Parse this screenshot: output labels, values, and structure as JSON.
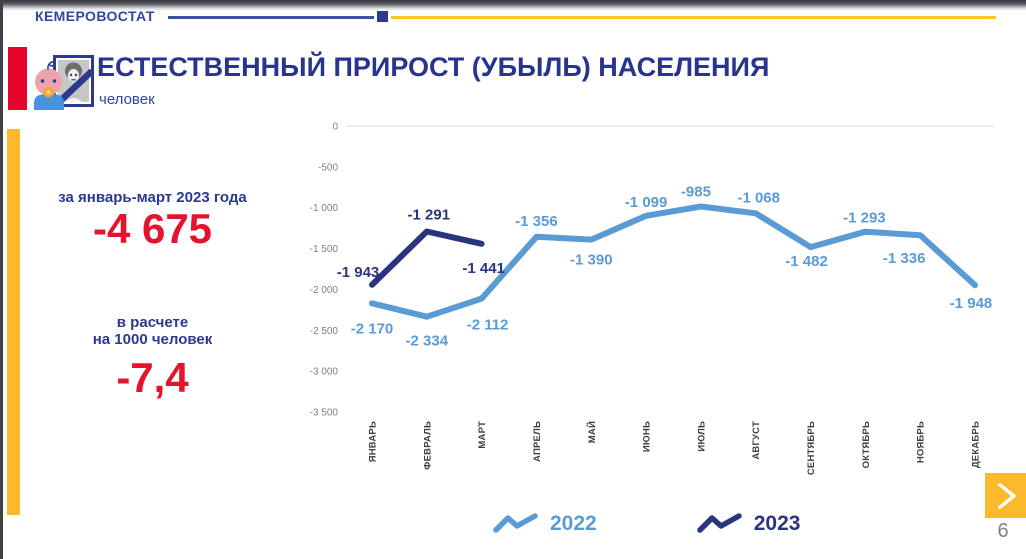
{
  "header": {
    "brand": "КЕМЕРОВОСТАТ"
  },
  "title": {
    "text": "ЕСТЕСТВЕННЫЙ ПРИРОСТ (УБЫЛЬ) НАСЕЛЕНИЯ",
    "subtitle": "человек"
  },
  "stats": {
    "period_label": "за январь-март 2023 года",
    "period_value": "-4 675",
    "rate_label_line1": "в расчете",
    "rate_label_line2": "на 1000 человек",
    "rate_value": "-7,4"
  },
  "chart_data": {
    "type": "line",
    "title": "ЕСТЕСТВЕННЫЙ ПРИРОСТ (УБЫЛЬ) НАСЕЛЕНИЯ",
    "unit": "человек",
    "categories": [
      "ЯНВАРЬ",
      "ФЕВРАЛЬ",
      "МАРТ",
      "АПРЕЛЬ",
      "МАЙ",
      "ИЮНЬ",
      "ИЮЛЬ",
      "АВГУСТ",
      "СЕНТЯБРЬ",
      "ОКТЯБРЬ",
      "НОЯБРЬ",
      "ДЕКАБРЬ"
    ],
    "series": [
      {
        "name": "2022",
        "color": "#5b9bd5",
        "values": [
          -2170,
          -2334,
          -2112,
          -1356,
          -1390,
          -1099,
          -985,
          -1068,
          -1482,
          -1293,
          -1336,
          -1948
        ],
        "label_offsets": [
          [
            0,
            30
          ],
          [
            0,
            29
          ],
          [
            6,
            31
          ],
          [
            0,
            -11
          ],
          [
            0,
            25
          ],
          [
            0,
            -9
          ],
          [
            -5,
            -10
          ],
          [
            3,
            -11
          ],
          [
            -4,
            19
          ],
          [
            -1,
            -9
          ],
          [
            -16,
            28
          ],
          [
            -4,
            23
          ]
        ]
      },
      {
        "name": "2023",
        "color": "#29367f",
        "values": [
          -1943,
          -1291,
          -1441
        ],
        "label_offsets": [
          [
            -14,
            -8
          ],
          [
            2,
            -12
          ],
          [
            2,
            29
          ]
        ]
      }
    ],
    "y_axis": {
      "min": -3500,
      "max": 0,
      "step": 500,
      "tick_labels": [
        "0",
        "-500",
        "-1 000",
        "-1 500",
        "-2 000",
        "-2 500",
        "-3 000",
        "-3 500"
      ]
    },
    "grid": "zero-line-only",
    "legend_position": "bottom"
  },
  "legend": {
    "items": [
      {
        "label": "2022",
        "color": "#5b9bd5"
      },
      {
        "label": "2023",
        "color": "#29367f"
      }
    ]
  },
  "pagination": {
    "page": "6"
  },
  "colors": {
    "accent_red": "#e4062b",
    "accent_yellow": "#fdb92d",
    "brand_blue": "#2b3990",
    "title_navy": "#28348f",
    "value_red": "#e6132e",
    "axis_grey": "#7f7f7f"
  }
}
